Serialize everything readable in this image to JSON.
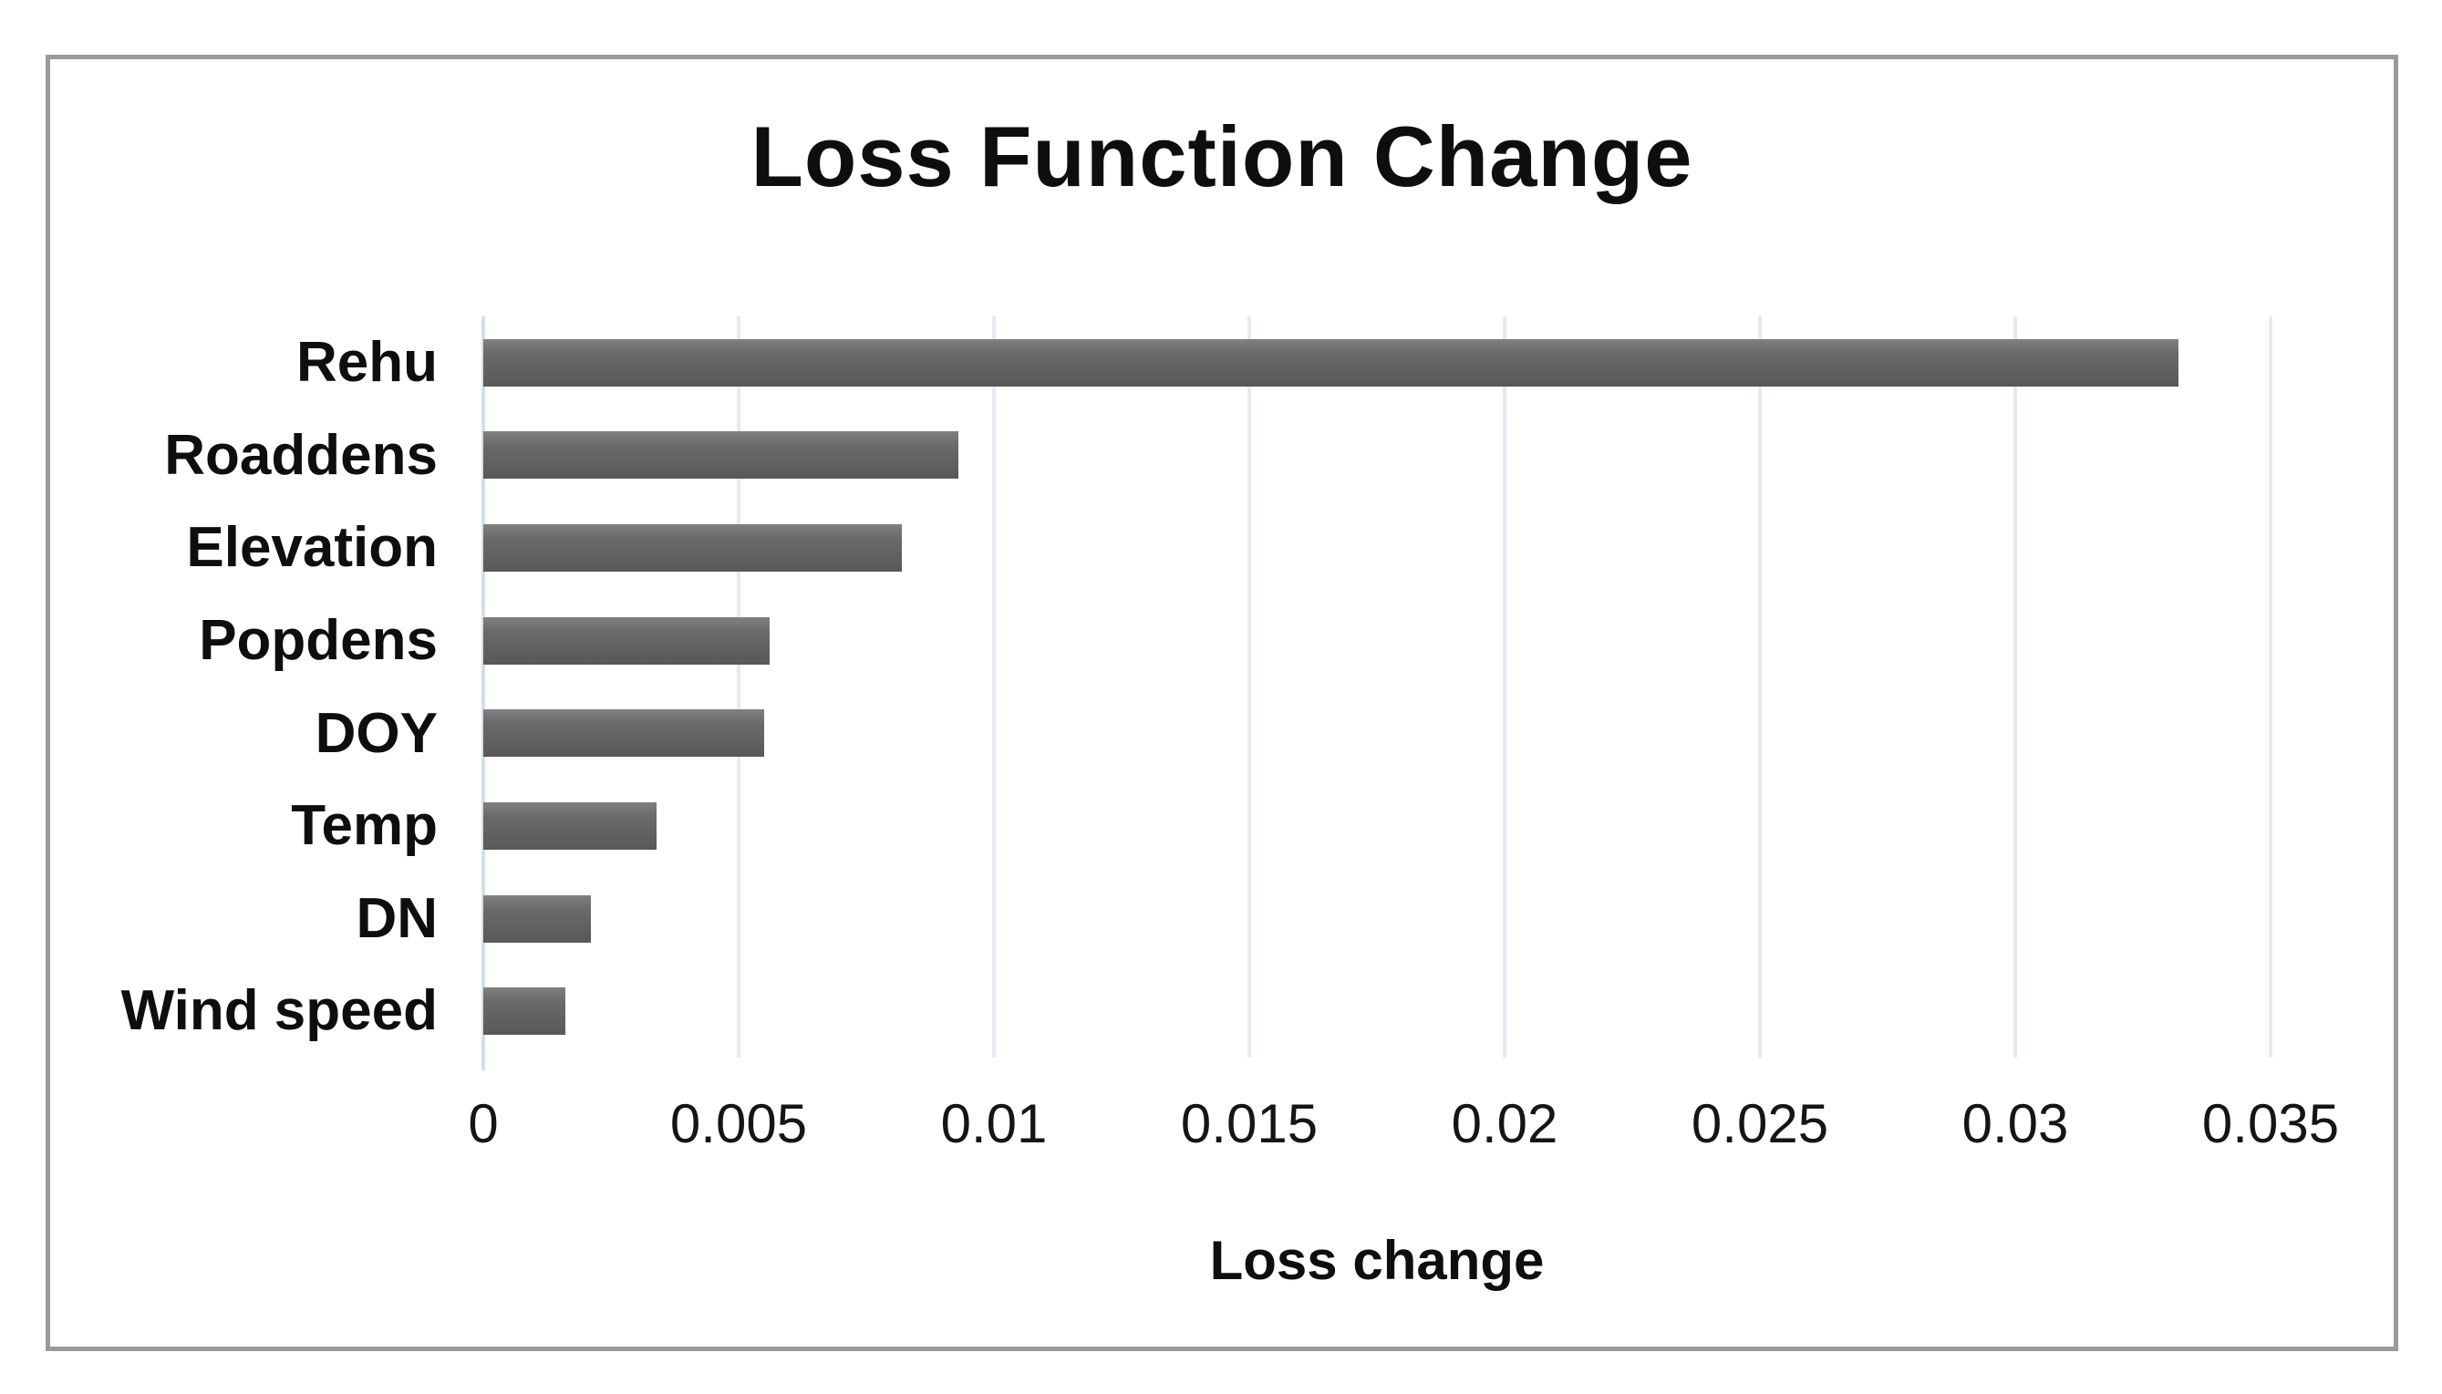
{
  "figure": {
    "background_color": "#ffffff",
    "border_color": "#9a9a9a"
  },
  "chart_data": {
    "type": "bar",
    "orientation": "horizontal",
    "title": "Loss Function Change",
    "xlabel": "Loss change",
    "ylabel": "",
    "categories": [
      "Rehu",
      "Roaddens",
      "Elevation",
      "Popdens",
      "DOY",
      "Temp",
      "DN",
      "Wind speed"
    ],
    "values": [
      0.0332,
      0.0093,
      0.0082,
      0.0056,
      0.0055,
      0.0034,
      0.0021,
      0.0016
    ],
    "xlim": [
      0,
      0.035
    ],
    "xticks": [
      0,
      0.005,
      0.01,
      0.015,
      0.02,
      0.025,
      0.03,
      0.035
    ],
    "xtick_labels": [
      "0",
      "0.005",
      "0.01",
      "0.015",
      "0.02",
      "0.025",
      "0.03",
      "0.035"
    ],
    "grid": "vertical-gridlines-on",
    "legend": "none",
    "bar_color": "#5f5f5f",
    "bar_gradient_top": "#818181",
    "bar_gradient_bottom": "#585858",
    "gridline_color": "#e4eaf3",
    "axis_line_color": "#d5dfeb",
    "text_color": "#0e0e0e"
  }
}
